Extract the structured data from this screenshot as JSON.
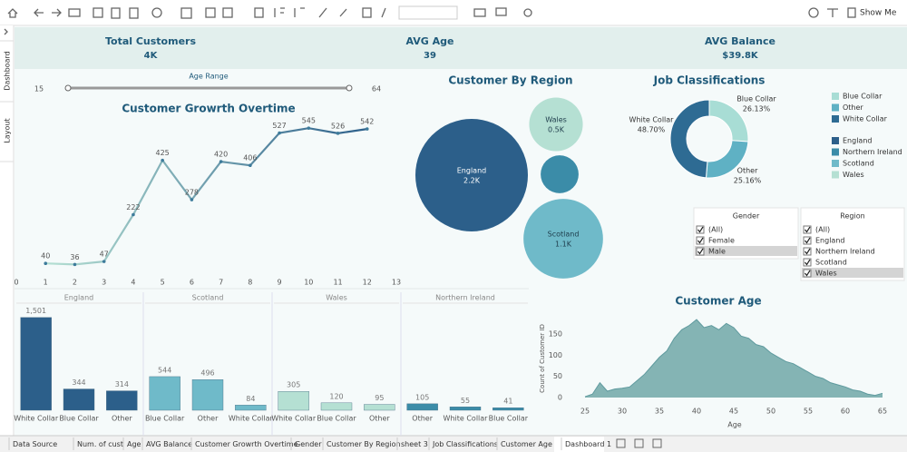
{
  "toolbar": {
    "show_me": "Show Me"
  },
  "side_tabs": [
    "Dashboard",
    "Layout"
  ],
  "kpis": [
    {
      "label": "Total Customers",
      "value": "4K"
    },
    {
      "label": "AVG Age",
      "value": "39"
    },
    {
      "label": "AVG Balance",
      "value": "$39.8K"
    }
  ],
  "age_filter": {
    "title": "Age Range",
    "min": 15,
    "max": 64
  },
  "chart_data": [
    {
      "type": "line",
      "title": "Customer Growrth Overtime",
      "x": [
        1,
        2,
        3,
        4,
        5,
        6,
        7,
        8,
        9,
        10,
        11,
        12
      ],
      "values": [
        40,
        36,
        47,
        222,
        425,
        278,
        420,
        406,
        527,
        545,
        526,
        542
      ],
      "color_start": "#b5e0d3",
      "color_end": "#2c5f8a",
      "xlim": [
        0,
        13
      ],
      "xticks": [
        0,
        1,
        2,
        3,
        4,
        5,
        6,
        7,
        8,
        9,
        10,
        11,
        12,
        13
      ],
      "ylim": [
        0,
        600
      ]
    },
    {
      "type": "bubble",
      "title": "Customer By Region",
      "categories": [
        "England",
        "Wales",
        null,
        "Scotland"
      ],
      "values": [
        2200,
        500,
        250,
        1100
      ],
      "value_labels": [
        "2.2K",
        "0.5K",
        null,
        "1.1K"
      ],
      "colors": [
        "#2c5f8a",
        "#b5e0d3",
        "#3b8ca8",
        "#6fbac9"
      ]
    },
    {
      "type": "donut",
      "title": "Job Classifications",
      "categories": [
        "Blue Collar",
        "Other",
        "White Collar"
      ],
      "values": [
        26.13,
        25.16,
        48.7
      ],
      "value_labels": [
        "26.13%",
        "25.16%",
        "48.70%"
      ],
      "colors": [
        "#a8ddd5",
        "#5fb1c4",
        "#2e6b93"
      ]
    },
    {
      "type": "bar",
      "ylim": [
        0,
        1600
      ],
      "panels": [
        {
          "name": "England",
          "color": "#2c5f8a",
          "categories": [
            "White Collar",
            "Blue Collar",
            "Other"
          ],
          "values": [
            1501,
            344,
            314
          ],
          "value_labels": [
            "1,501",
            "344",
            "314"
          ]
        },
        {
          "name": "Scotland",
          "color": "#6fbac9",
          "categories": [
            "Blue Collar",
            "Other",
            "White Collar"
          ],
          "values": [
            544,
            496,
            84
          ],
          "value_labels": [
            "544",
            "496",
            "84"
          ]
        },
        {
          "name": "Wales",
          "color": "#b5e0d3",
          "categories": [
            "White Collar",
            "Blue Collar",
            "Other"
          ],
          "values": [
            305,
            120,
            95
          ],
          "value_labels": [
            "305",
            "120",
            "95"
          ]
        },
        {
          "name": "Northern Ireland",
          "color": "#3b8ca8",
          "categories": [
            "Other",
            "White Collar",
            "Blue Collar"
          ],
          "values": [
            105,
            55,
            41
          ],
          "value_labels": [
            "105",
            "55",
            "41"
          ]
        }
      ]
    },
    {
      "type": "area",
      "title": "Customer Age",
      "x_label": "Age",
      "y_label": "Count of Customer ID",
      "x": [
        25,
        26,
        27,
        28,
        29,
        30,
        31,
        32,
        33,
        34,
        35,
        36,
        37,
        38,
        39,
        40,
        41,
        42,
        43,
        44,
        45,
        46,
        47,
        48,
        49,
        50,
        51,
        52,
        53,
        54,
        55,
        56,
        57,
        58,
        59,
        60,
        61,
        62,
        63,
        64,
        65
      ],
      "values": [
        2,
        8,
        35,
        15,
        20,
        22,
        25,
        40,
        55,
        75,
        95,
        110,
        140,
        160,
        170,
        184,
        165,
        170,
        160,
        175,
        165,
        145,
        140,
        125,
        120,
        105,
        95,
        85,
        80,
        70,
        60,
        50,
        45,
        35,
        30,
        25,
        18,
        15,
        8,
        5,
        10
      ],
      "color": "#84b4b4",
      "xlim": [
        25,
        65
      ],
      "xticks": [
        25,
        30,
        35,
        40,
        45,
        50,
        55,
        60,
        65
      ],
      "ylim": [
        0,
        190
      ],
      "yticks": [
        0,
        50,
        100,
        150
      ]
    }
  ],
  "region_legend": [
    {
      "name": "England",
      "color": "#2c5f8a"
    },
    {
      "name": "Northern Ireland",
      "color": "#3b8ca8"
    },
    {
      "name": "Scotland",
      "color": "#6fbac9"
    },
    {
      "name": "Wales",
      "color": "#b5e0d3"
    }
  ],
  "filters": [
    {
      "title": "Gender",
      "items": [
        {
          "label": "(All)",
          "checked": true
        },
        {
          "label": "Female",
          "checked": true
        },
        {
          "label": "Male",
          "checked": true,
          "highlighted": true
        }
      ]
    },
    {
      "title": "Region",
      "items": [
        {
          "label": "(All)",
          "checked": true
        },
        {
          "label": "England",
          "checked": true
        },
        {
          "label": "Northern Ireland",
          "checked": true
        },
        {
          "label": "Scotland",
          "checked": true
        },
        {
          "label": "Wales",
          "checked": true,
          "highlighted": true
        }
      ]
    }
  ],
  "sheet_tabs": [
    {
      "label": "Data Source"
    },
    {
      "label": "Num. of cust"
    },
    {
      "label": "Age"
    },
    {
      "label": "AVG Balance"
    },
    {
      "label": "Customer Growrth Overtime"
    },
    {
      "label": "Gender"
    },
    {
      "label": "Customer By Region"
    },
    {
      "label": "sheet 3"
    },
    {
      "label": "Job Classifications"
    },
    {
      "label": "Customer Age"
    },
    {
      "label": "Dashboard 1",
      "active": true
    }
  ]
}
